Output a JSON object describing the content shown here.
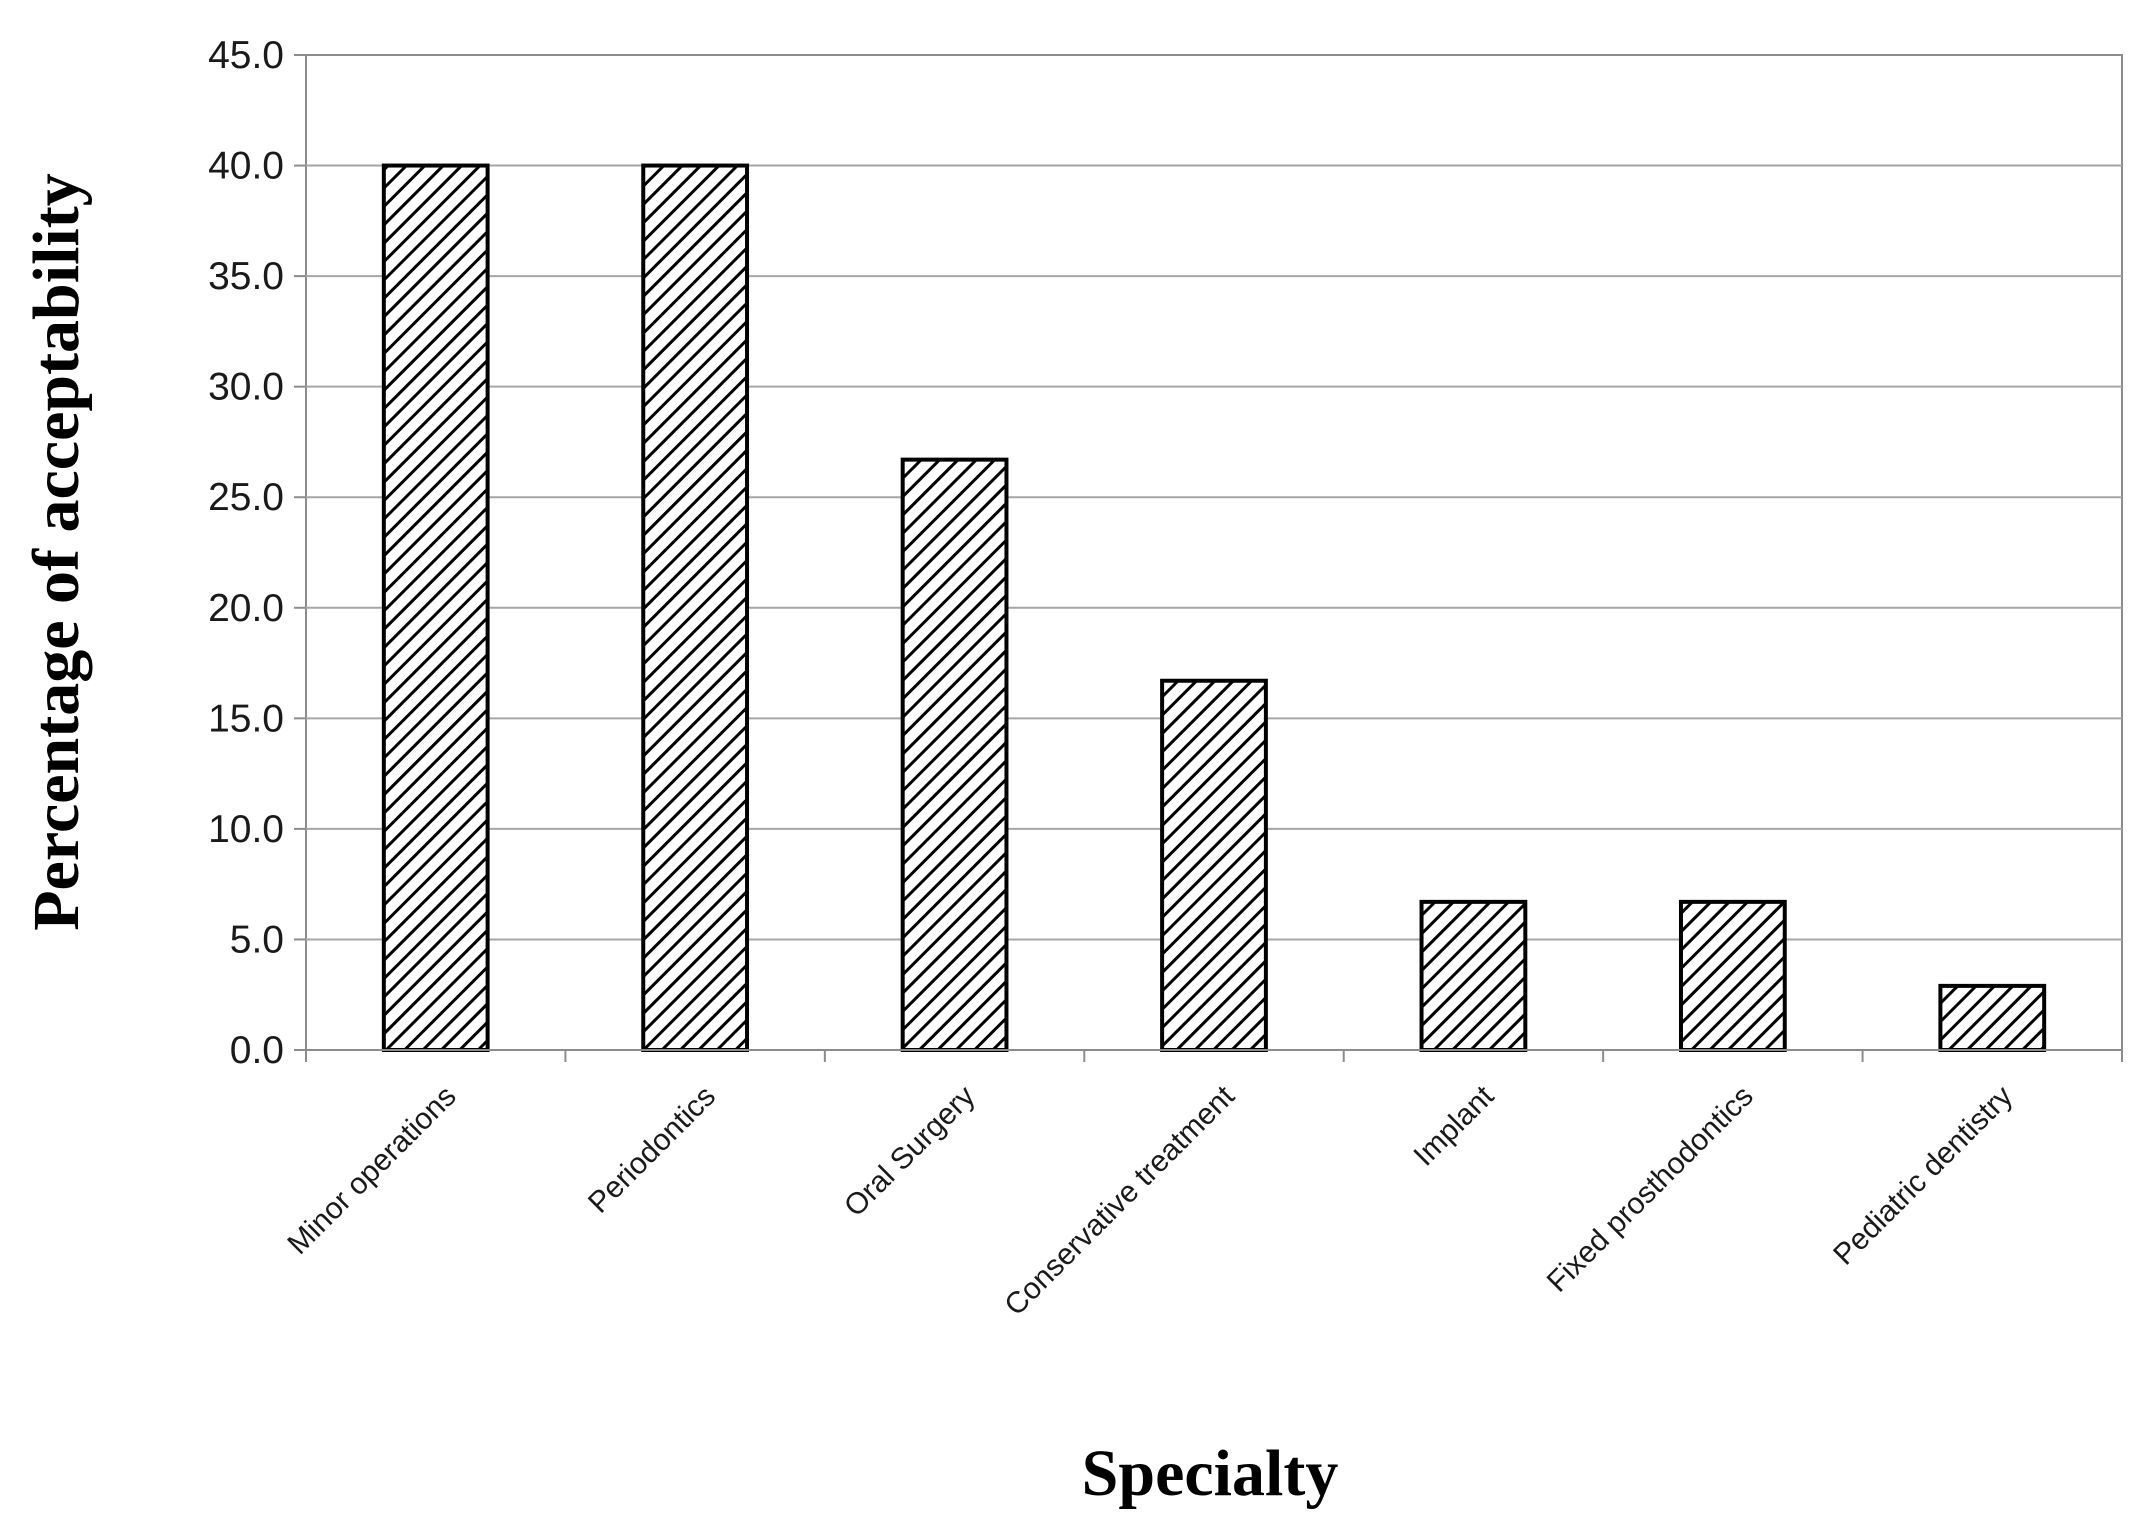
{
  "chart_data": {
    "type": "bar",
    "title": "",
    "xlabel": "Specialty",
    "ylabel": "Percentage of acceptability",
    "categories": [
      "Minor operations",
      "Periodontics",
      "Oral Surgery",
      "Conservative treatment",
      "Implant",
      "Fixed prosthodontics",
      "Pediatric dentistry"
    ],
    "values": [
      40.0,
      40.0,
      26.7,
      16.7,
      6.7,
      6.7,
      2.9
    ],
    "ylim": [
      0,
      45
    ],
    "yticks": [
      "0.0",
      "5.0",
      "10.0",
      "15.0",
      "20.0",
      "25.0",
      "30.0",
      "35.0",
      "40.0",
      "45.0"
    ],
    "grid": true,
    "legend": "none",
    "bar_fill": "diagonal-hatch",
    "colors": {
      "bar_stroke": "#000000",
      "hatch": "#000000",
      "grid": "#a6a6a6",
      "background": "#ffffff"
    }
  }
}
